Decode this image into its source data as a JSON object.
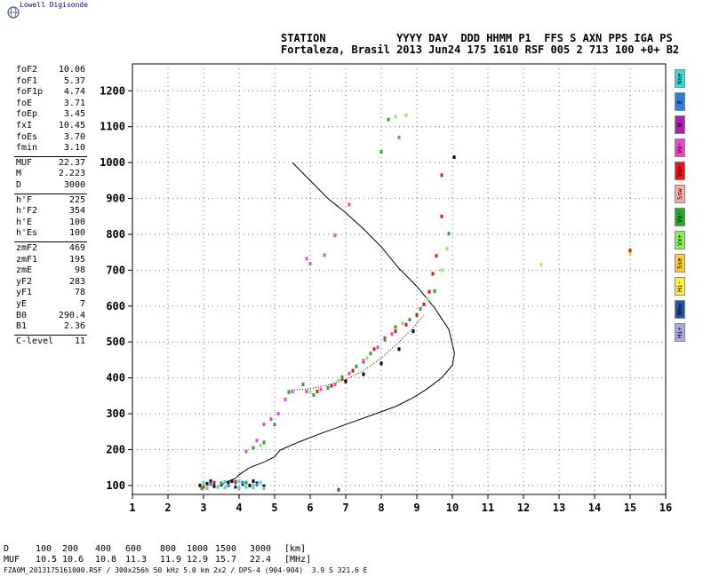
{
  "header": {
    "logo": "Lowell Digisonde",
    "columns": [
      "STATION",
      "YYYY DAY",
      "DDD HHMM P1",
      "FFS S AXN PPS IGA PS"
    ],
    "station": "Fortaleza, Brasil",
    "date": "2013 Jun24",
    "doy": "175",
    "time": "1610",
    "p1": "RSF",
    "ffs": "005",
    "s": "2",
    "axn": "713",
    "pps": "100",
    "iga": "+0+",
    "ps": "B2"
  },
  "params": {
    "group1": [
      {
        "name": "foF2",
        "value": "10.06"
      },
      {
        "name": "foF1",
        "value": "5.37"
      },
      {
        "name": "foF1p",
        "value": "4.74"
      },
      {
        "name": "foE",
        "value": "3.71"
      },
      {
        "name": "foEp",
        "value": "3.45"
      },
      {
        "name": "fxI",
        "value": "10.45"
      },
      {
        "name": "foEs",
        "value": "3.70"
      },
      {
        "name": "fmin",
        "value": "3.10"
      }
    ],
    "group2": [
      {
        "name": "MUF",
        "value": "22.37"
      },
      {
        "name": "M",
        "value": "2.223"
      },
      {
        "name": "D",
        "value": "3000"
      }
    ],
    "group3": [
      {
        "name": "h'F",
        "value": "225"
      },
      {
        "name": "h'F2",
        "value": "354"
      },
      {
        "name": "h'E",
        "value": "100"
      },
      {
        "name": "h'Es",
        "value": "100"
      }
    ],
    "group4": [
      {
        "name": "zmF2",
        "value": "469"
      },
      {
        "name": "zmF1",
        "value": "195"
      },
      {
        "name": "zmE",
        "value": "98"
      },
      {
        "name": "yF2",
        "value": "283"
      },
      {
        "name": "yF1",
        "value": "78"
      },
      {
        "name": "yE",
        "value": "7"
      },
      {
        "name": "B0",
        "value": "290.4"
      },
      {
        "name": "B1",
        "value": "2.36"
      }
    ],
    "group5": [
      {
        "name": "C-level",
        "value": "11"
      }
    ]
  },
  "legend_buttons": [
    {
      "label": "Nne",
      "color": "#33dddd"
    },
    {
      "label": "E",
      "color": "#2a7fd4"
    },
    {
      "label": "W",
      "color": "#aa22aa"
    },
    {
      "label": "Vo-",
      "color": "#ee44cc"
    },
    {
      "label": "Vo+",
      "color": "#ee1111"
    },
    {
      "label": "Ssw",
      "color": "#ffaaaa"
    },
    {
      "label": "Vx-",
      "color": "#22aa22"
    },
    {
      "label": "Vx+",
      "color": "#88ee55"
    },
    {
      "label": "Sse",
      "color": "#ffcc33"
    },
    {
      "label": "Hi-",
      "color": "#ffee44"
    },
    {
      "label": "Nnw",
      "color": "#2255aa"
    },
    {
      "label": "Hi+",
      "color": "#aaaadd"
    }
  ],
  "muf_table": {
    "d_label": "D",
    "d_values": [
      "100",
      "200",
      "400",
      "600",
      "800",
      "1000",
      "1500",
      "3000"
    ],
    "d_unit": "[km]",
    "muf_label": "MUF",
    "muf_values": [
      "10.5",
      "10.6",
      "10.8",
      "11.3",
      "11.9",
      "12.9",
      "15.7",
      "22.4"
    ],
    "muf_unit": "[MHz]"
  },
  "footer": "FZA0M_2013175161000.RSF / 300x256h 50 kHz 5.0 km 2x2 / DPS-4 (904-904)  3.9 S 321.6 E",
  "chart_data": {
    "type": "scatter",
    "xlabel": "",
    "ylabel": "",
    "xlim": [
      1,
      16
    ],
    "ylim": [
      75,
      1275
    ],
    "xticks": [
      1,
      2,
      3,
      4,
      5,
      6,
      7,
      8,
      9,
      10,
      11,
      12,
      13,
      14,
      15,
      16
    ],
    "yticks": [
      100,
      200,
      300,
      400,
      500,
      600,
      700,
      800,
      900,
      1000,
      1100,
      1200
    ],
    "grid": "dotted",
    "series": [
      {
        "color": "#ee1111",
        "points": [
          [
            6.2,
            362
          ],
          [
            6.6,
            378
          ],
          [
            6.9,
            398
          ],
          [
            7.2,
            420
          ],
          [
            7.5,
            445
          ],
          [
            7.8,
            480
          ],
          [
            8.1,
            510
          ],
          [
            8.4,
            530
          ],
          [
            8.7,
            548
          ],
          [
            9.0,
            575
          ],
          [
            9.2,
            605
          ],
          [
            9.35,
            640
          ],
          [
            9.45,
            690
          ],
          [
            9.55,
            740
          ],
          [
            9.7,
            850
          ],
          [
            9.7,
            965
          ]
        ]
      },
      {
        "color": "#ee44cc",
        "points": [
          [
            4.2,
            195
          ],
          [
            4.5,
            225
          ],
          [
            4.7,
            270
          ],
          [
            4.9,
            285
          ],
          [
            5.1,
            300
          ],
          [
            5.3,
            340
          ],
          [
            5.5,
            362
          ],
          [
            5.9,
            362
          ],
          [
            6.3,
            368
          ],
          [
            6.7,
            382
          ],
          [
            7.1,
            412
          ],
          [
            7.5,
            448
          ],
          [
            7.9,
            485
          ],
          [
            8.3,
            522
          ],
          [
            8.5,
            1070
          ],
          [
            5.9,
            732
          ],
          [
            6.0,
            718
          ],
          [
            6.4,
            742
          ],
          [
            6.7,
            797
          ],
          [
            7.1,
            883
          ]
        ]
      },
      {
        "color": "#22aa22",
        "points": [
          [
            4.4,
            205
          ],
          [
            4.7,
            220
          ],
          [
            5.0,
            270
          ],
          [
            5.4,
            360
          ],
          [
            5.8,
            382
          ],
          [
            6.1,
            352
          ],
          [
            6.5,
            372
          ],
          [
            6.9,
            402
          ],
          [
            7.3,
            432
          ],
          [
            7.7,
            468
          ],
          [
            8.1,
            506
          ],
          [
            8.4,
            542
          ],
          [
            8.8,
            562
          ],
          [
            9.1,
            592
          ],
          [
            9.5,
            642
          ],
          [
            9.9,
            802
          ],
          [
            8.0,
            1030
          ],
          [
            8.2,
            1120
          ]
        ]
      },
      {
        "color": "#88ee55",
        "points": [
          [
            4.6,
            212
          ],
          [
            6.0,
            360
          ],
          [
            6.8,
            392
          ],
          [
            7.6,
            455
          ],
          [
            8.6,
            552
          ],
          [
            9.3,
            620
          ],
          [
            9.7,
            700
          ],
          [
            9.85,
            760
          ],
          [
            8.4,
            1128
          ],
          [
            8.7,
            1132
          ]
        ]
      },
      {
        "color": "#ffcc33",
        "points": [
          [
            12.5,
            715
          ],
          [
            15.0,
            745
          ]
        ]
      },
      {
        "color": "#ee1111",
        "points": [
          [
            15.0,
            755
          ]
        ]
      },
      {
        "color": "#2255aa",
        "points": [
          [
            6.8,
            88
          ]
        ]
      },
      {
        "color": "#000000",
        "points": [
          [
            7.0,
            390
          ],
          [
            7.5,
            410
          ],
          [
            8.0,
            440
          ],
          [
            8.5,
            480
          ],
          [
            8.9,
            530
          ],
          [
            10.05,
            1015
          ]
        ]
      },
      {
        "color": "#111111",
        "points": [
          [
            2.9,
            100
          ],
          [
            3.1,
            105
          ],
          [
            3.3,
            98
          ],
          [
            3.5,
            102
          ],
          [
            3.7,
            108
          ],
          [
            3.9,
            96
          ],
          [
            4.1,
            104
          ],
          [
            4.3,
            100
          ],
          [
            4.5,
            106
          ],
          [
            4.7,
            98
          ],
          [
            3.2,
            112
          ],
          [
            3.8,
            112
          ],
          [
            4.4,
            112
          ]
        ]
      },
      {
        "color": "#33dddd",
        "points": [
          [
            3.0,
            108
          ],
          [
            3.4,
            96
          ],
          [
            3.6,
            110
          ],
          [
            4.0,
            112
          ],
          [
            4.2,
            96
          ],
          [
            4.6,
            108
          ],
          [
            3.9,
            104
          ],
          [
            4.4,
            100
          ]
        ]
      },
      {
        "color": "#2a7fd4",
        "points": [
          [
            3.2,
            104
          ],
          [
            3.7,
            100
          ],
          [
            4.1,
            108
          ],
          [
            4.5,
            102
          ]
        ]
      },
      {
        "color": "#ee1111",
        "points": [
          [
            3.0,
            96
          ],
          [
            3.3,
            108
          ],
          [
            3.9,
            110
          ]
        ]
      },
      {
        "color": "#22aa22",
        "points": [
          [
            2.95,
            92
          ],
          [
            3.5,
            106
          ],
          [
            4.2,
            108
          ]
        ]
      },
      {
        "color": "#aaaaaa",
        "points": [
          [
            3.1,
            92
          ],
          [
            3.6,
            94
          ],
          [
            4.0,
            92
          ],
          [
            4.4,
            94
          ],
          [
            4.7,
            92
          ]
        ]
      }
    ],
    "profile": [
      [
        5.5,
        1000
      ],
      [
        6.0,
        950
      ],
      [
        6.5,
        900
      ],
      [
        7.0,
        860
      ],
      [
        7.5,
        815
      ],
      [
        8.0,
        765
      ],
      [
        8.5,
        705
      ],
      [
        9.0,
        655
      ],
      [
        9.5,
        595
      ],
      [
        9.9,
        535
      ],
      [
        10.06,
        469
      ],
      [
        10.0,
        435
      ],
      [
        9.7,
        400
      ],
      [
        9.3,
        370
      ],
      [
        8.9,
        345
      ],
      [
        8.4,
        320
      ],
      [
        7.7,
        295
      ],
      [
        7.0,
        270
      ],
      [
        6.3,
        245
      ],
      [
        5.7,
        222
      ],
      [
        5.3,
        205
      ],
      [
        5.15,
        198
      ],
      [
        5.0,
        180
      ],
      [
        4.7,
        165
      ],
      [
        4.3,
        150
      ],
      [
        4.0,
        130
      ],
      [
        3.9,
        120
      ],
      [
        3.6,
        108
      ],
      [
        3.5,
        100
      ]
    ],
    "trace_dots": [
      [
        5.4,
        365
      ],
      [
        6.0,
        370
      ],
      [
        6.5,
        380
      ],
      [
        7.0,
        395
      ],
      [
        7.5,
        420
      ],
      [
        8.0,
        455
      ],
      [
        8.5,
        500
      ],
      [
        8.9,
        540
      ],
      [
        9.2,
        575
      ]
    ]
  }
}
